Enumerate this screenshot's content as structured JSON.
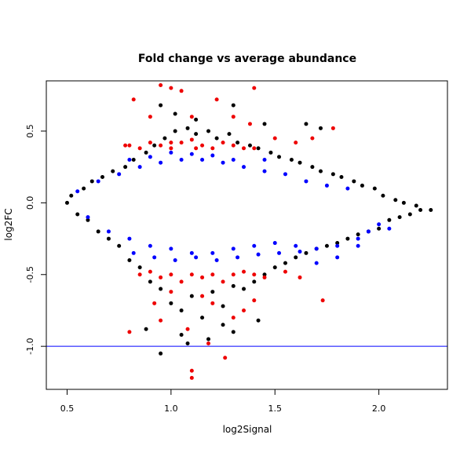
{
  "chart_data": {
    "type": "scatter",
    "title": "Fold change vs average abundance",
    "xlabel": "log2Signal",
    "ylabel": "log2FC",
    "xlim": [
      0.4,
      2.33
    ],
    "ylim": [
      -1.3,
      0.85
    ],
    "x_ticks": [
      0.5,
      1.0,
      1.5,
      2.0
    ],
    "x_tick_labels": [
      "0.5",
      "1.0",
      "1.5",
      "2.0"
    ],
    "y_ticks": [
      -1.0,
      -0.5,
      0.0,
      0.5
    ],
    "y_tick_labels": [
      "-1.0",
      "-0.5",
      "0.0",
      "0.5"
    ],
    "grid": false,
    "hline": {
      "y": -1.0,
      "color": "#0000ff"
    },
    "series": [
      {
        "color": "#000000",
        "points": [
          [
            0.5,
            0.0
          ],
          [
            0.52,
            0.05
          ],
          [
            0.55,
            -0.08
          ],
          [
            0.58,
            0.1
          ],
          [
            0.6,
            -0.12
          ],
          [
            0.62,
            0.15
          ],
          [
            0.65,
            -0.2
          ],
          [
            0.67,
            0.18
          ],
          [
            0.7,
            -0.25
          ],
          [
            0.72,
            0.22
          ],
          [
            0.75,
            -0.3
          ],
          [
            0.78,
            0.25
          ],
          [
            0.8,
            -0.4
          ],
          [
            0.82,
            0.3
          ],
          [
            0.85,
            -0.45
          ],
          [
            0.88,
            0.35
          ],
          [
            0.9,
            -0.55
          ],
          [
            0.92,
            0.4
          ],
          [
            0.95,
            -0.6
          ],
          [
            0.97,
            0.45
          ],
          [
            1.0,
            -0.7
          ],
          [
            1.02,
            0.5
          ],
          [
            1.05,
            -0.75
          ],
          [
            1.08,
            0.52
          ],
          [
            1.1,
            -0.65
          ],
          [
            1.12,
            0.48
          ],
          [
            1.15,
            -0.8
          ],
          [
            1.18,
            0.5
          ],
          [
            1.2,
            -0.62
          ],
          [
            1.22,
            0.45
          ],
          [
            1.25,
            -0.72
          ],
          [
            1.28,
            0.48
          ],
          [
            1.3,
            -0.58
          ],
          [
            1.32,
            0.42
          ],
          [
            1.35,
            -0.6
          ],
          [
            1.38,
            0.4
          ],
          [
            1.4,
            -0.55
          ],
          [
            1.42,
            0.38
          ],
          [
            1.45,
            -0.5
          ],
          [
            1.48,
            0.35
          ],
          [
            1.5,
            -0.45
          ],
          [
            1.52,
            0.32
          ],
          [
            1.55,
            -0.42
          ],
          [
            1.58,
            0.3
          ],
          [
            1.6,
            -0.38
          ],
          [
            1.62,
            0.28
          ],
          [
            1.65,
            -0.35
          ],
          [
            1.68,
            0.25
          ],
          [
            1.7,
            -0.32
          ],
          [
            1.72,
            0.22
          ],
          [
            1.75,
            -0.3
          ],
          [
            1.78,
            0.2
          ],
          [
            1.8,
            -0.28
          ],
          [
            1.82,
            0.18
          ],
          [
            1.85,
            -0.25
          ],
          [
            1.88,
            0.15
          ],
          [
            1.9,
            -0.22
          ],
          [
            1.92,
            0.12
          ],
          [
            1.95,
            -0.2
          ],
          [
            1.98,
            0.1
          ],
          [
            2.0,
            -0.18
          ],
          [
            2.02,
            0.05
          ],
          [
            2.05,
            -0.12
          ],
          [
            2.08,
            0.02
          ],
          [
            2.1,
            -0.1
          ],
          [
            2.12,
            0.0
          ],
          [
            2.15,
            -0.08
          ],
          [
            2.18,
            -0.02
          ],
          [
            2.2,
            -0.05
          ],
          [
            2.25,
            -0.05
          ],
          [
            0.95,
            0.68
          ],
          [
            1.02,
            0.62
          ],
          [
            1.12,
            0.58
          ],
          [
            1.3,
            0.68
          ],
          [
            1.45,
            0.55
          ],
          [
            1.65,
            0.55
          ],
          [
            1.72,
            0.52
          ],
          [
            0.95,
            -1.05
          ],
          [
            1.08,
            -0.98
          ],
          [
            1.18,
            -0.95
          ],
          [
            1.3,
            -0.9
          ],
          [
            1.42,
            -0.82
          ],
          [
            0.88,
            -0.88
          ],
          [
            1.25,
            -0.85
          ],
          [
            1.05,
            -0.92
          ]
        ]
      },
      {
        "color": "#0000ff",
        "points": [
          [
            0.55,
            0.08
          ],
          [
            0.6,
            -0.1
          ],
          [
            0.65,
            0.15
          ],
          [
            0.7,
            -0.2
          ],
          [
            0.75,
            0.2
          ],
          [
            0.8,
            -0.25
          ],
          [
            0.85,
            0.25
          ],
          [
            0.9,
            -0.3
          ],
          [
            0.95,
            0.28
          ],
          [
            1.0,
            -0.32
          ],
          [
            1.05,
            0.3
          ],
          [
            1.1,
            -0.35
          ],
          [
            1.15,
            0.3
          ],
          [
            1.2,
            -0.35
          ],
          [
            1.25,
            0.28
          ],
          [
            1.3,
            -0.32
          ],
          [
            1.35,
            0.25
          ],
          [
            1.4,
            -0.3
          ],
          [
            1.45,
            0.22
          ],
          [
            1.5,
            -0.28
          ],
          [
            1.55,
            0.2
          ],
          [
            1.6,
            -0.3
          ],
          [
            1.65,
            0.15
          ],
          [
            1.7,
            -0.32
          ],
          [
            1.75,
            0.12
          ],
          [
            1.8,
            -0.3
          ],
          [
            1.85,
            0.1
          ],
          [
            1.9,
            -0.25
          ],
          [
            1.95,
            -0.2
          ],
          [
            2.0,
            -0.15
          ],
          [
            2.05,
            -0.18
          ],
          [
            1.7,
            -0.42
          ],
          [
            1.8,
            -0.38
          ],
          [
            1.9,
            -0.3
          ],
          [
            0.8,
            0.3
          ],
          [
            0.9,
            0.32
          ],
          [
            1.0,
            0.35
          ],
          [
            1.1,
            0.34
          ],
          [
            1.2,
            0.33
          ],
          [
            1.3,
            0.3
          ],
          [
            0.82,
            -0.35
          ],
          [
            0.92,
            -0.38
          ],
          [
            1.02,
            -0.4
          ],
          [
            1.12,
            -0.38
          ],
          [
            1.22,
            -0.4
          ],
          [
            1.32,
            -0.38
          ],
          [
            1.42,
            -0.36
          ],
          [
            1.52,
            -0.35
          ],
          [
            1.62,
            -0.34
          ],
          [
            1.45,
            0.3
          ]
        ]
      },
      {
        "color": "#ee0000",
        "points": [
          [
            0.95,
            0.82
          ],
          [
            1.0,
            0.8
          ],
          [
            1.05,
            0.78
          ],
          [
            1.22,
            0.72
          ],
          [
            1.4,
            0.8
          ],
          [
            0.82,
            0.72
          ],
          [
            0.9,
            0.6
          ],
          [
            1.1,
            0.6
          ],
          [
            1.3,
            0.6
          ],
          [
            1.38,
            0.55
          ],
          [
            0.8,
            0.4
          ],
          [
            0.85,
            0.38
          ],
          [
            0.9,
            0.42
          ],
          [
            0.95,
            0.4
          ],
          [
            1.0,
            0.38
          ],
          [
            1.05,
            0.42
          ],
          [
            1.1,
            0.44
          ],
          [
            1.15,
            0.4
          ],
          [
            1.2,
            0.38
          ],
          [
            1.25,
            0.42
          ],
          [
            1.3,
            0.4
          ],
          [
            1.35,
            0.38
          ],
          [
            1.4,
            0.38
          ],
          [
            1.5,
            0.45
          ],
          [
            1.6,
            0.42
          ],
          [
            1.68,
            0.45
          ],
          [
            1.78,
            0.52
          ],
          [
            0.78,
            0.4
          ],
          [
            1.0,
            0.42
          ],
          [
            1.12,
            0.38
          ],
          [
            0.85,
            -0.5
          ],
          [
            0.9,
            -0.48
          ],
          [
            0.95,
            -0.52
          ],
          [
            1.0,
            -0.5
          ],
          [
            1.05,
            -0.55
          ],
          [
            1.1,
            -0.5
          ],
          [
            1.15,
            -0.52
          ],
          [
            1.2,
            -0.5
          ],
          [
            1.25,
            -0.55
          ],
          [
            1.3,
            -0.5
          ],
          [
            1.35,
            -0.48
          ],
          [
            1.4,
            -0.5
          ],
          [
            1.45,
            -0.52
          ],
          [
            1.55,
            -0.48
          ],
          [
            1.62,
            -0.52
          ],
          [
            1.73,
            -0.68
          ],
          [
            0.8,
            -0.9
          ],
          [
            0.95,
            -0.82
          ],
          [
            1.08,
            -0.88
          ],
          [
            1.18,
            -0.98
          ],
          [
            1.26,
            -1.08
          ],
          [
            1.1,
            -1.17
          ],
          [
            1.1,
            -1.22
          ],
          [
            1.35,
            -0.75
          ],
          [
            1.2,
            -0.7
          ],
          [
            1.3,
            -0.8
          ],
          [
            1.0,
            -0.62
          ],
          [
            0.92,
            -0.7
          ],
          [
            1.15,
            -0.65
          ],
          [
            1.4,
            -0.68
          ]
        ]
      }
    ]
  }
}
